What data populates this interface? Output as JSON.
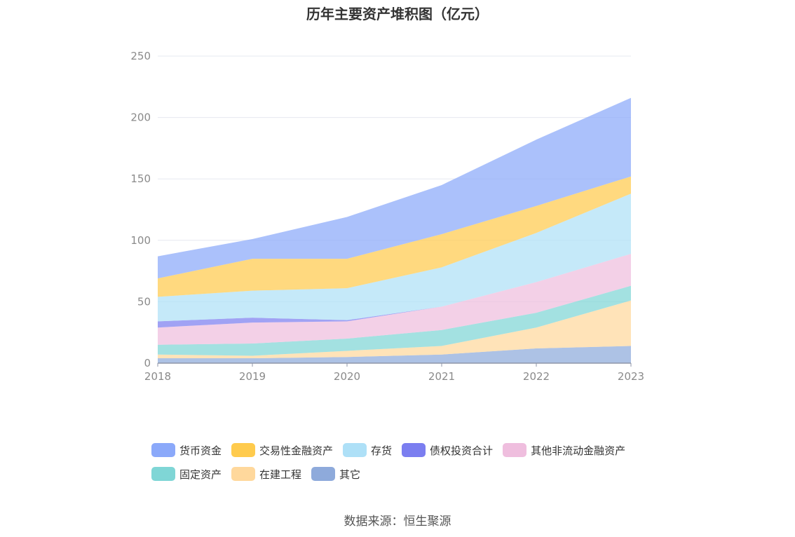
{
  "chart_data": {
    "type": "area",
    "stacked": true,
    "title": "历年主要资产堆积图（亿元）",
    "xlabel": "",
    "ylabel": "",
    "x": [
      "2018",
      "2019",
      "2020",
      "2021",
      "2022",
      "2023"
    ],
    "ylim": [
      0,
      250
    ],
    "yticks": [
      0,
      50,
      100,
      150,
      200,
      250
    ],
    "grid": true,
    "legend_position": "bottom",
    "series": [
      {
        "name": "其它",
        "color": "#8eaadb",
        "values": [
          4,
          4,
          5,
          7,
          12,
          14
        ]
      },
      {
        "name": "在建工程",
        "color": "#ffd89c",
        "values": [
          3,
          2,
          5,
          7,
          17,
          37
        ]
      },
      {
        "name": "固定资产",
        "color": "#7fd6d6",
        "values": [
          8,
          10,
          10,
          13,
          12,
          12
        ]
      },
      {
        "name": "其他非流动金融资产",
        "color": "#efbede",
        "values": [
          14,
          17,
          14,
          19,
          25,
          26
        ]
      },
      {
        "name": "债权投资合计",
        "color": "#7b7ef0",
        "values": [
          5,
          4,
          1,
          0,
          0,
          0
        ]
      },
      {
        "name": "存货",
        "color": "#aee0f7",
        "values": [
          20,
          22,
          26,
          32,
          40,
          49
        ]
      },
      {
        "name": "交易性金融资产",
        "color": "#ffcb4d",
        "values": [
          15,
          26,
          24,
          27,
          22,
          14
        ]
      },
      {
        "name": "货币资金",
        "color": "#8ba9fa",
        "values": [
          18,
          16,
          34,
          40,
          54,
          64
        ]
      }
    ],
    "legend_order": [
      "货币资金",
      "交易性金融资产",
      "存货",
      "债权投资合计",
      "其他非流动金融资产",
      "固定资产",
      "在建工程",
      "其它"
    ]
  },
  "source_text": "数据来源：恒生聚源"
}
